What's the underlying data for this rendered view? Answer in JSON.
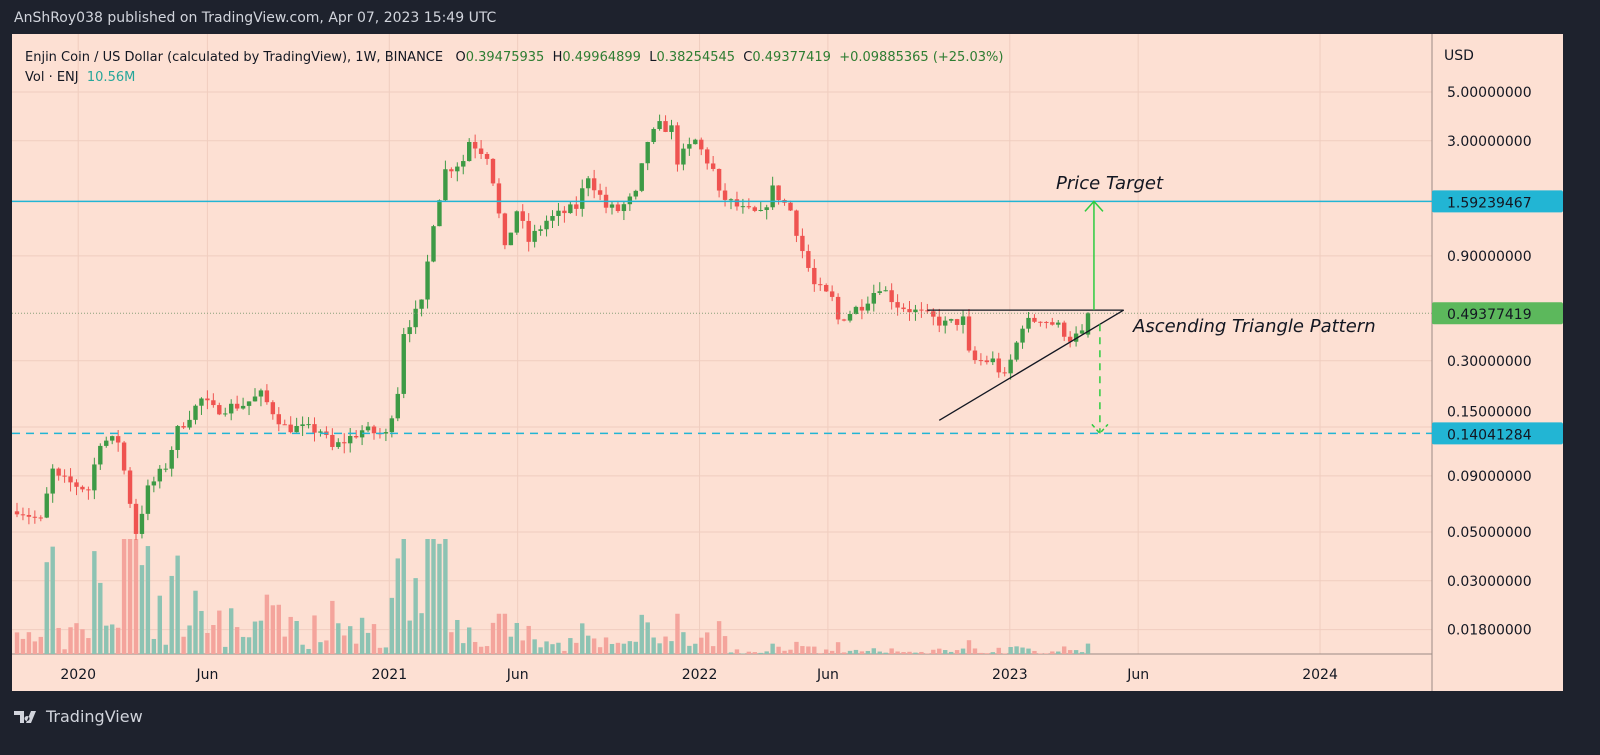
{
  "publisher_line": "AnShRoy038 published on TradingView.com, Apr 07, 2023 15:49 UTC",
  "legend": {
    "symbol": "Enjin Coin / US Dollar (calculated by TradingView), 1W, BINANCE",
    "o_label": "O",
    "o": "0.39475935",
    "h_label": "H",
    "h": "0.49964899",
    "l_label": "L",
    "l": "0.38254545",
    "c_label": "C",
    "c": "0.49377419",
    "change": "+0.09885365 (+25.03%)",
    "vol_label": "Vol · ENJ",
    "vol": "10.56M"
  },
  "footer": {
    "brand": "TradingView"
  },
  "colors": {
    "up": "#3d9a45",
    "down": "#ef5350",
    "vol_up": "#8dc3b3",
    "vol_down": "#f4a49c",
    "cyan": "#22b5d4",
    "bg": "#fde0d3"
  },
  "chart_data": {
    "type": "candlestick",
    "title": "Enjin Coin / US Dollar, 1W, BINANCE",
    "scale": "log",
    "currency_label": "USD",
    "start_week": "2019-10-21",
    "close_anchors": [
      [
        0,
        0.064
      ],
      [
        4,
        0.056
      ],
      [
        6,
        0.095
      ],
      [
        7,
        0.087
      ],
      [
        12,
        0.078
      ],
      [
        14,
        0.13
      ],
      [
        17,
        0.13
      ],
      [
        18,
        0.095
      ],
      [
        20,
        0.05
      ],
      [
        22,
        0.078
      ],
      [
        25,
        0.1
      ],
      [
        27,
        0.145
      ],
      [
        31,
        0.2
      ],
      [
        33,
        0.18
      ],
      [
        38,
        0.19
      ],
      [
        41,
        0.21
      ],
      [
        45,
        0.15
      ],
      [
        51,
        0.145
      ],
      [
        53,
        0.12
      ],
      [
        58,
        0.145
      ],
      [
        62,
        0.138
      ],
      [
        64,
        0.22
      ],
      [
        65,
        0.41
      ],
      [
        68,
        0.54
      ],
      [
        70,
        1.3
      ],
      [
        72,
        2.2
      ],
      [
        75,
        2.45
      ],
      [
        76,
        3.0
      ],
      [
        79,
        2.6
      ],
      [
        80,
        2.0
      ],
      [
        82,
        0.95
      ],
      [
        84,
        1.45
      ],
      [
        86,
        1.05
      ],
      [
        89,
        1.3
      ],
      [
        91,
        1.38
      ],
      [
        94,
        1.5
      ],
      [
        96,
        2.1
      ],
      [
        99,
        1.5
      ],
      [
        101,
        1.45
      ],
      [
        104,
        1.7
      ],
      [
        106,
        3.0
      ],
      [
        108,
        3.5
      ],
      [
        110,
        3.4
      ],
      [
        111,
        2.45
      ],
      [
        114,
        3.0
      ],
      [
        117,
        2.2
      ],
      [
        118,
        1.7
      ],
      [
        122,
        1.45
      ],
      [
        125,
        1.38
      ],
      [
        127,
        1.8
      ],
      [
        130,
        1.45
      ],
      [
        132,
        0.95
      ],
      [
        134,
        0.66
      ],
      [
        137,
        0.57
      ],
      [
        138,
        0.46
      ],
      [
        142,
        0.54
      ],
      [
        145,
        0.66
      ],
      [
        148,
        0.54
      ],
      [
        152,
        0.49
      ],
      [
        156,
        0.44
      ],
      [
        159,
        0.46
      ],
      [
        160,
        0.32
      ],
      [
        161,
        0.3
      ],
      [
        164,
        0.3
      ],
      [
        166,
        0.25
      ],
      [
        168,
        0.36
      ],
      [
        169,
        0.44
      ],
      [
        172,
        0.47
      ],
      [
        175,
        0.43
      ],
      [
        177,
        0.38
      ],
      [
        179,
        0.39475935
      ]
    ],
    "last_candle": {
      "open": 0.39475935,
      "high": 0.49964899,
      "low": 0.38254545,
      "close": 0.49377419,
      "volume": "10.56M"
    },
    "price_ticks": [
      "5.00000000",
      "3.00000000",
      "0.90000000",
      "0.30000000",
      "0.15000000",
      "0.09000000",
      "0.05000000",
      "0.03000000",
      "0.01800000"
    ],
    "time_ticks": [
      {
        "label": "2020",
        "date": "2020-01-01"
      },
      {
        "label": "Jun",
        "date": "2020-06-01"
      },
      {
        "label": "2021",
        "date": "2021-01-01"
      },
      {
        "label": "Jun",
        "date": "2021-06-01"
      },
      {
        "label": "2022",
        "date": "2022-01-01"
      },
      {
        "label": "Jun",
        "date": "2022-06-01"
      },
      {
        "label": "2023",
        "date": "2023-01-01"
      },
      {
        "label": "Jun",
        "date": "2023-06-01"
      },
      {
        "label": "2024",
        "date": "2024-01-01"
      }
    ],
    "levels": [
      {
        "name": "price-target",
        "value": 1.59239467,
        "label": "1.59239467",
        "style": "solid"
      },
      {
        "name": "current",
        "value": 0.49377419,
        "label": "0.49377419",
        "style": "dotted"
      },
      {
        "name": "downside",
        "value": 0.14041284,
        "label": "0.14041284",
        "style": "dashed"
      }
    ],
    "annotations": {
      "price_target": "Price Target",
      "pattern": "Ascending Triangle Pattern",
      "resistance": [
        [
          153,
          0.51
        ],
        [
          186,
          0.51
        ]
      ],
      "support": [
        [
          155,
          0.161
        ],
        [
          186,
          0.51
        ]
      ],
      "arrow_up": {
        "week": 181,
        "from": 0.51,
        "to": 1.59239467
      },
      "arrow_down": {
        "week": 182,
        "from": 0.44,
        "to": 0.14041284
      }
    }
  }
}
